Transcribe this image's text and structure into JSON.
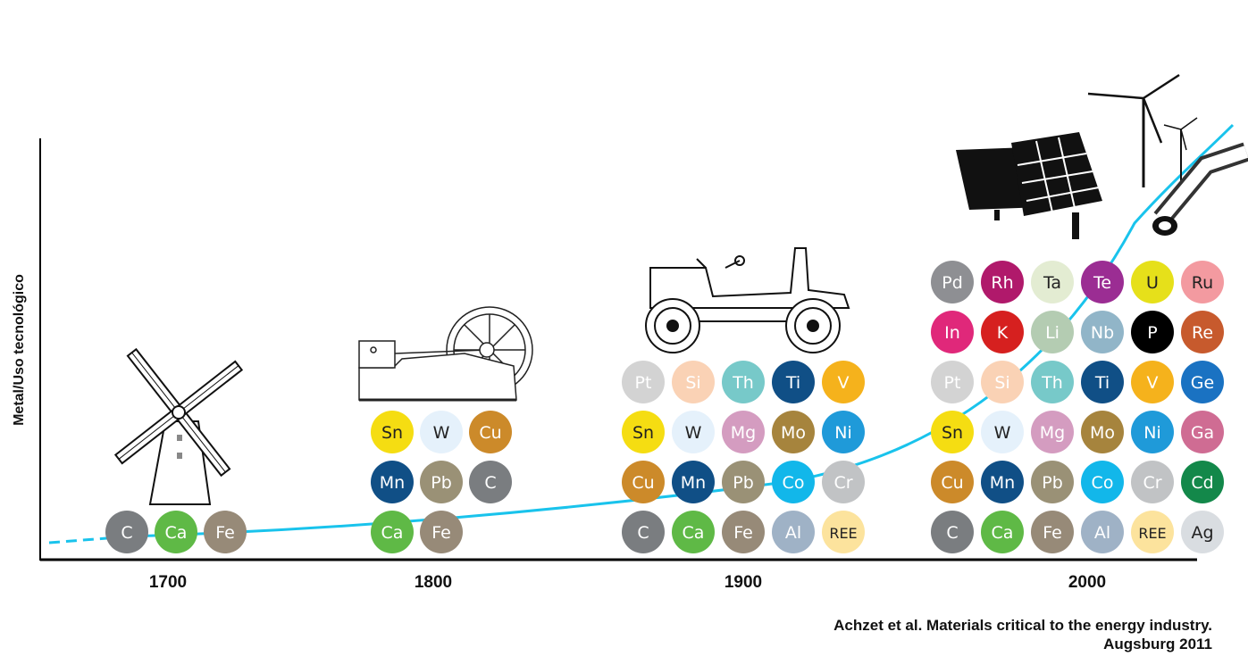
{
  "axis": {
    "y_label": "Metal/Uso tecnológico"
  },
  "citation": {
    "line1": "Achzet et al. Materials critical to the energy industry.",
    "line2": "Augsburg 2011"
  },
  "eras": [
    {
      "year": "1700",
      "icon": "windmill-icon",
      "elements": [
        {
          "s": "C",
          "c": "#7a7d80"
        },
        {
          "s": "Ca",
          "c": "#5fb946"
        },
        {
          "s": "Fe",
          "c": "#978a78"
        }
      ]
    },
    {
      "year": "1800",
      "icon": "steam-engine-icon",
      "elements": [
        {
          "s": "Sn",
          "c": "#f5dd12",
          "d": true
        },
        {
          "s": "W",
          "c": "#e5f1fb",
          "d": true
        },
        {
          "s": "Cu",
          "c": "#cc8a2a"
        },
        {
          "s": "Mn",
          "c": "#104f86"
        },
        {
          "s": "Pb",
          "c": "#9a9176"
        },
        {
          "s": "C",
          "c": "#7a7d80"
        },
        {
          "s": "Ca",
          "c": "#5fb946"
        },
        {
          "s": "Fe",
          "c": "#978a78"
        }
      ]
    },
    {
      "year": "1900",
      "icon": "early-car-icon",
      "elements": [
        {
          "s": "Pt",
          "c": "#d3d3d3"
        },
        {
          "s": "Si",
          "c": "#fad2b5"
        },
        {
          "s": "Th",
          "c": "#77c9c9"
        },
        {
          "s": "Ti",
          "c": "#104f86"
        },
        {
          "s": "V",
          "c": "#f5b21c"
        },
        {
          "s": "Sn",
          "c": "#f5dd12",
          "d": true
        },
        {
          "s": "W",
          "c": "#e5f1fb",
          "d": true
        },
        {
          "s": "Mg",
          "c": "#d49cc0"
        },
        {
          "s": "Mo",
          "c": "#a6843d"
        },
        {
          "s": "Ni",
          "c": "#1f9ad9"
        },
        {
          "s": "Cu",
          "c": "#cc8a2a"
        },
        {
          "s": "Mn",
          "c": "#104f86"
        },
        {
          "s": "Pb",
          "c": "#9a9176"
        },
        {
          "s": "Co",
          "c": "#12b7ea"
        },
        {
          "s": "Cr",
          "c": "#c1c3c5"
        },
        {
          "s": "C",
          "c": "#7a7d80"
        },
        {
          "s": "Ca",
          "c": "#5fb946"
        },
        {
          "s": "Fe",
          "c": "#978a78"
        },
        {
          "s": "Al",
          "c": "#9fb2c6"
        },
        {
          "s": "REE",
          "c": "#fce39d",
          "d": true
        }
      ]
    },
    {
      "year": "2000",
      "icon": "solar-wind-icon",
      "elements": [
        {
          "s": "Pd",
          "c": "#8e8f93"
        },
        {
          "s": "Rh",
          "c": "#b0196b"
        },
        {
          "s": "Ta",
          "c": "#e3ecd2",
          "d": true
        },
        {
          "s": "Te",
          "c": "#9b2d93"
        },
        {
          "s": "U",
          "c": "#e6e01a",
          "d": true
        },
        {
          "s": "Ru",
          "c": "#f39aa0",
          "d": true
        },
        {
          "s": "In",
          "c": "#e0287a"
        },
        {
          "s": "K",
          "c": "#d6201f"
        },
        {
          "s": "Li",
          "c": "#b4ccb2"
        },
        {
          "s": "Nb",
          "c": "#91b5c8"
        },
        {
          "s": "P",
          "c": "#000000"
        },
        {
          "s": "Re",
          "c": "#c75a2d"
        },
        {
          "s": "Pt",
          "c": "#d3d3d3"
        },
        {
          "s": "Si",
          "c": "#fad2b5"
        },
        {
          "s": "Th",
          "c": "#77c9c9"
        },
        {
          "s": "Ti",
          "c": "#104f86"
        },
        {
          "s": "V",
          "c": "#f5b21c"
        },
        {
          "s": "Ge",
          "c": "#1a72c2"
        },
        {
          "s": "Sn",
          "c": "#f5dd12",
          "d": true
        },
        {
          "s": "W",
          "c": "#e5f1fb",
          "d": true
        },
        {
          "s": "Mg",
          "c": "#d49cc0"
        },
        {
          "s": "Mo",
          "c": "#a6843d"
        },
        {
          "s": "Ni",
          "c": "#1f9ad9"
        },
        {
          "s": "Ga",
          "c": "#cf6c93"
        },
        {
          "s": "Cu",
          "c": "#cc8a2a"
        },
        {
          "s": "Mn",
          "c": "#104f86"
        },
        {
          "s": "Pb",
          "c": "#9a9176"
        },
        {
          "s": "Co",
          "c": "#12b7ea"
        },
        {
          "s": "Cr",
          "c": "#c1c3c5"
        },
        {
          "s": "Cd",
          "c": "#13884a"
        },
        {
          "s": "C",
          "c": "#7a7d80"
        },
        {
          "s": "Ca",
          "c": "#5fb946"
        },
        {
          "s": "Fe",
          "c": "#978a78"
        },
        {
          "s": "Al",
          "c": "#9fb2c6"
        },
        {
          "s": "REE",
          "c": "#fce39d",
          "d": true
        },
        {
          "s": "Ag",
          "c": "#d9dde1",
          "d": true
        }
      ]
    }
  ],
  "colors": {
    "curve": "#19c3ec",
    "axis": "#000000"
  }
}
